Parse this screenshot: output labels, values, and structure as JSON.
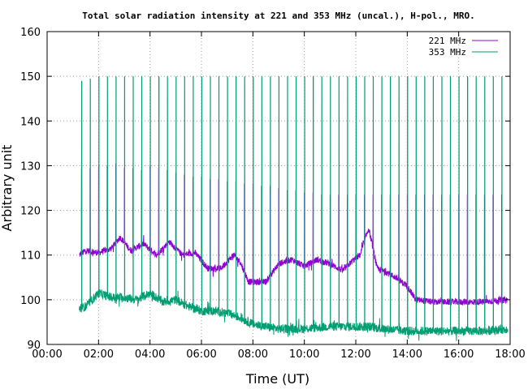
{
  "chart_data": {
    "type": "line",
    "title": "Total solar radiation intensity at 221 and 353 MHz (uncal.), H-pol., MRO.",
    "xlabel": "Time (UT)",
    "ylabel": "Arbitrary unit",
    "xlim": [
      "00:00",
      "18:00"
    ],
    "ylim": [
      90,
      160
    ],
    "x_ticks": [
      "00:00",
      "02:00",
      "04:00",
      "06:00",
      "08:00",
      "10:00",
      "12:00",
      "14:00",
      "16:00",
      "18:00"
    ],
    "y_ticks": [
      "90",
      "100",
      "110",
      "120",
      "130",
      "140",
      "150",
      "160"
    ],
    "grid": true,
    "legend_position": "top-right",
    "calibration_period_minutes": 20,
    "calibration_start": "01:20",
    "series": [
      {
        "name": "221 MHz",
        "color": "#9400d3",
        "baseline_x": [
          "01:15",
          "01:30",
          "02:00",
          "02:30",
          "02:50",
          "03:15",
          "03:45",
          "04:15",
          "04:45",
          "05:15",
          "05:45",
          "06:15",
          "06:45",
          "07:15",
          "07:30",
          "07:50",
          "08:30",
          "09:00",
          "09:30",
          "10:00",
          "10:30",
          "11:00",
          "11:30",
          "11:50",
          "12:10",
          "12:30",
          "12:50",
          "13:15",
          "13:40",
          "14:00",
          "14:20",
          "15:00",
          "16:00",
          "17:00",
          "17:55"
        ],
        "baseline_y": [
          110,
          111,
          110.5,
          111.5,
          114,
          111,
          112.5,
          110,
          113,
          110,
          110.5,
          107,
          107,
          110,
          108.5,
          104,
          104,
          108,
          109,
          107.5,
          109,
          108,
          106.5,
          108.5,
          110,
          116,
          107,
          106,
          104.5,
          103,
          100,
          99.5,
          99.5,
          99.5,
          100
        ],
        "calibration_peak_y": [
          129.5,
          129.5,
          130,
          130,
          130.5,
          129.5,
          129.5,
          129,
          130,
          129.5,
          129,
          128.5,
          128,
          127.5,
          127.5,
          127,
          127,
          126.5,
          126.5,
          126,
          126,
          125.5,
          125.5,
          125,
          124.5,
          124.5,
          124,
          124,
          123.5,
          123.5,
          123.5,
          123.5,
          123.5,
          123.5,
          123.5,
          123.5,
          123.5,
          123.5,
          123.5,
          123.5,
          123.5,
          123.5,
          123.5,
          123.5,
          123.5,
          123.5,
          123.5,
          123.5,
          123.5,
          123.5
        ]
      },
      {
        "name": "353 MHz",
        "color": "#009e73",
        "baseline_x": [
          "01:15",
          "01:30",
          "02:00",
          "02:30",
          "03:00",
          "03:30",
          "04:00",
          "04:30",
          "05:00",
          "05:30",
          "06:00",
          "06:30",
          "07:00",
          "07:30",
          "08:00",
          "08:30",
          "09:00",
          "10:00",
          "11:00",
          "12:00",
          "12:30",
          "13:00",
          "14:00",
          "15:00",
          "16:00",
          "17:00",
          "17:55"
        ],
        "baseline_y": [
          98,
          98.5,
          101.5,
          100.5,
          100.5,
          100,
          101.5,
          99.5,
          100,
          98.5,
          97.5,
          97.5,
          97,
          96,
          94.5,
          94,
          93.5,
          93.5,
          94,
          94,
          94,
          93.5,
          93,
          93,
          93,
          93,
          93.5
        ],
        "calibration_peak_y": [
          149,
          149.5,
          150,
          150,
          150,
          150,
          150,
          150,
          150,
          150,
          150,
          150,
          150,
          150,
          150,
          150,
          150,
          150,
          150,
          150,
          150,
          150,
          150,
          150,
          150,
          150,
          150,
          150,
          150,
          150,
          150,
          150,
          150,
          150,
          150,
          150,
          150,
          150,
          150,
          150,
          150,
          150,
          150,
          150,
          150,
          150,
          150,
          150,
          150,
          150
        ]
      }
    ]
  }
}
